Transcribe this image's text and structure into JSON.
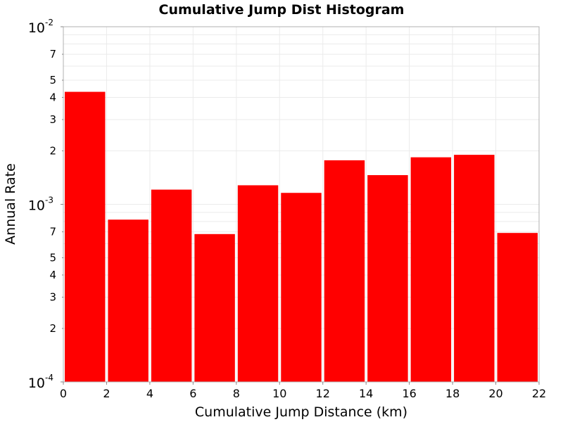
{
  "chart_data": {
    "type": "bar",
    "title": "Cumulative Jump Dist Histogram",
    "xlabel": "Cumulative Jump Distance (km)",
    "ylabel": "Annual Rate",
    "xlim": [
      0,
      22
    ],
    "ylim": [
      0.0001,
      0.01
    ],
    "yscale": "log",
    "grid": true,
    "bar_color": "#ff0000",
    "x_ticks": [
      "0",
      "2",
      "4",
      "6",
      "8",
      "10",
      "12",
      "14",
      "16",
      "18",
      "20",
      "22"
    ],
    "y_major_ticks": [
      {
        "value": 0.0001,
        "base": "10",
        "exp": "-4"
      },
      {
        "value": 0.001,
        "base": "10",
        "exp": "-3"
      },
      {
        "value": 0.01,
        "base": "10",
        "exp": "-2"
      }
    ],
    "y_minor_ticks": [
      {
        "value": 0.0002,
        "label": "2"
      },
      {
        "value": 0.0003,
        "label": "3"
      },
      {
        "value": 0.0004,
        "label": "4"
      },
      {
        "value": 0.0005,
        "label": "5"
      },
      {
        "value": 0.0007,
        "label": "7"
      },
      {
        "value": 0.002,
        "label": "2"
      },
      {
        "value": 0.003,
        "label": "3"
      },
      {
        "value": 0.004,
        "label": "4"
      },
      {
        "value": 0.005,
        "label": "5"
      },
      {
        "value": 0.007,
        "label": "7"
      }
    ],
    "bins": [
      {
        "x0": 0,
        "x1": 2,
        "value": 0.0043
      },
      {
        "x0": 2,
        "x1": 4,
        "value": 0.00082
      },
      {
        "x0": 4,
        "x1": 6,
        "value": 0.00121
      },
      {
        "x0": 6,
        "x1": 8,
        "value": 0.00068
      },
      {
        "x0": 8,
        "x1": 10,
        "value": 0.00128
      },
      {
        "x0": 10,
        "x1": 12,
        "value": 0.00116
      },
      {
        "x0": 12,
        "x1": 14,
        "value": 0.00177
      },
      {
        "x0": 14,
        "x1": 16,
        "value": 0.00146
      },
      {
        "x0": 16,
        "x1": 18,
        "value": 0.00184
      },
      {
        "x0": 18,
        "x1": 20,
        "value": 0.0019
      },
      {
        "x0": 20,
        "x1": 22,
        "value": 0.00069
      }
    ]
  }
}
